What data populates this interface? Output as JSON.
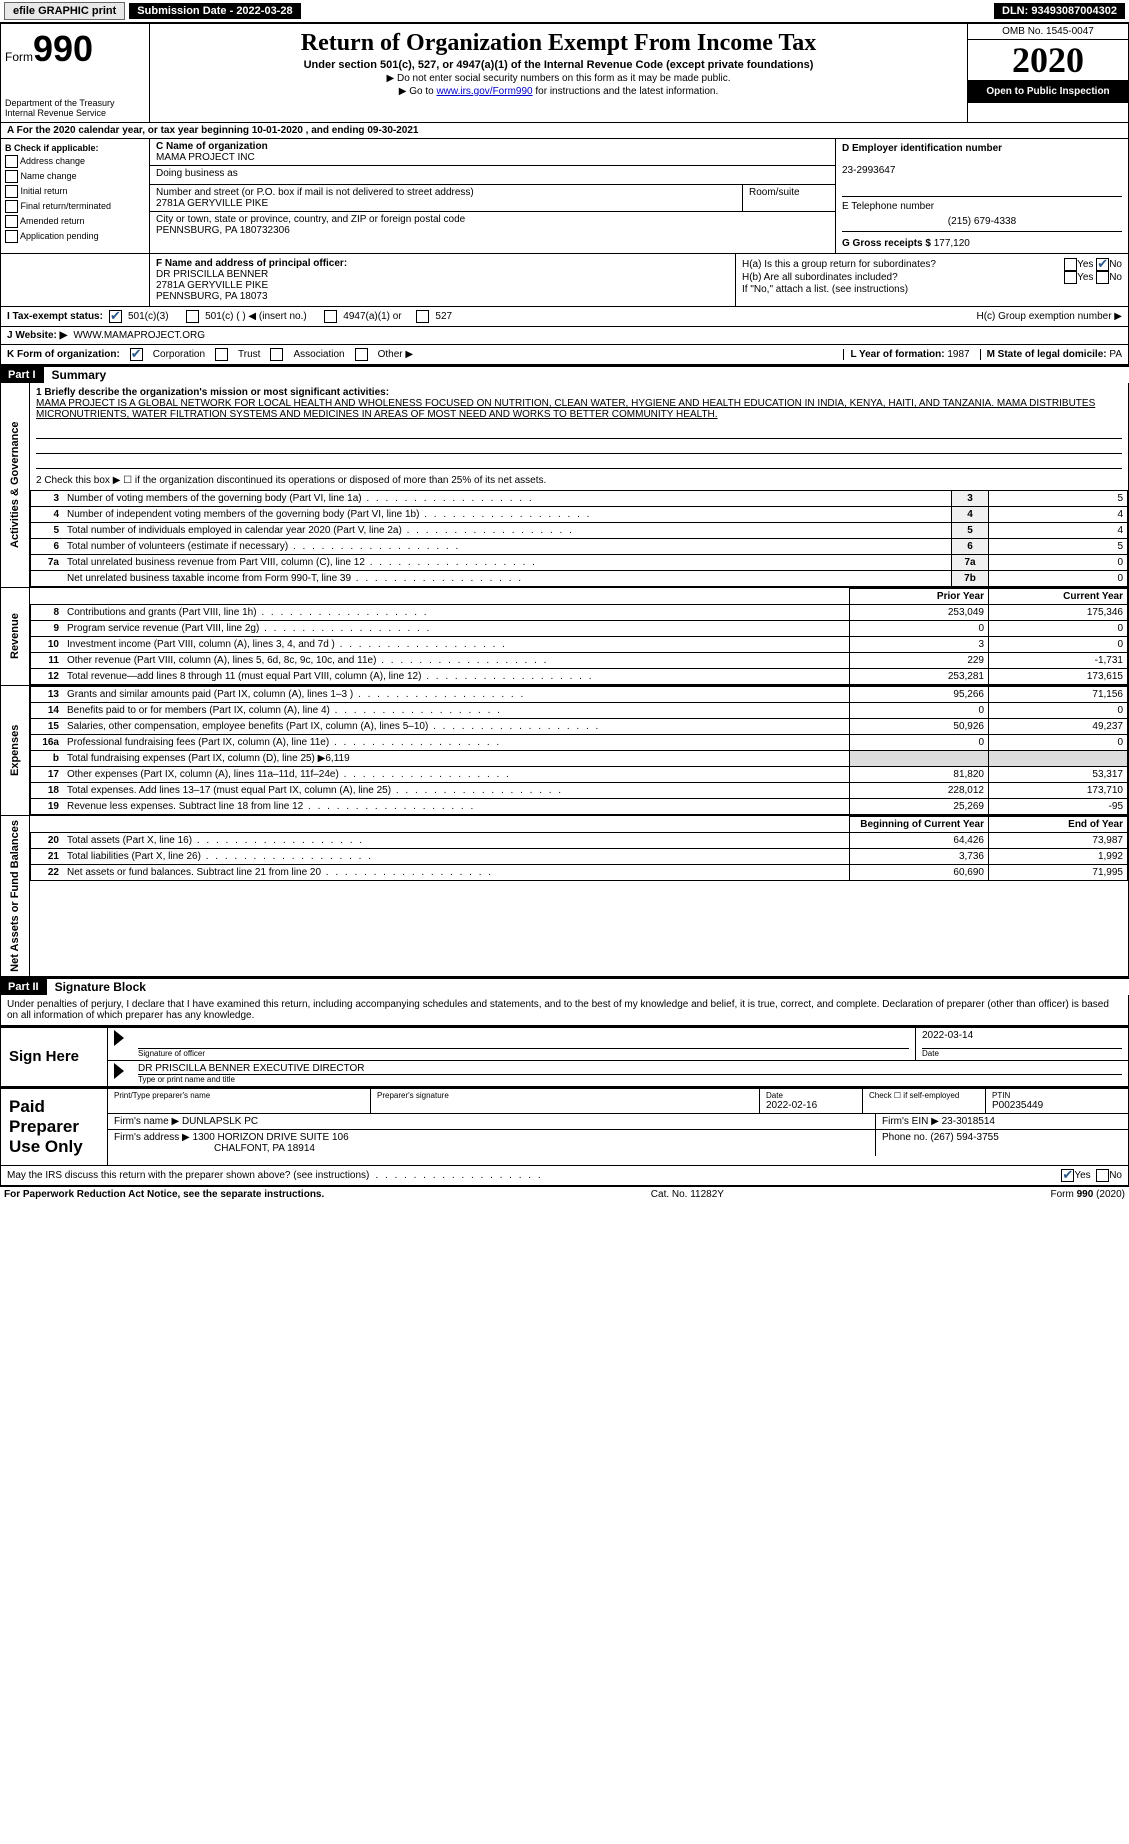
{
  "topbar": {
    "efile": "efile GRAPHIC print",
    "submission": "Submission Date - 2022-03-28",
    "dln": "DLN: 93493087004302"
  },
  "header": {
    "form_prefix": "Form",
    "form_number": "990",
    "title": "Return of Organization Exempt From Income Tax",
    "subtitle": "Under section 501(c), 527, or 4947(a)(1) of the Internal Revenue Code (except private foundations)",
    "note1": "▶ Do not enter social security numbers on this form as it may be made public.",
    "note2_pre": "▶ Go to ",
    "note2_link": "www.irs.gov/Form990",
    "note2_post": " for instructions and the latest information.",
    "dept": "Department of the Treasury",
    "irs": "Internal Revenue Service",
    "omb": "OMB No. 1545-0047",
    "year": "2020",
    "open": "Open to Public Inspection"
  },
  "line_a": "A For the 2020 calendar year, or tax year beginning 10-01-2020    , and ending 09-30-2021",
  "section_b": {
    "header": "B Check if applicable:",
    "opts": [
      "Address change",
      "Name change",
      "Initial return",
      "Final return/terminated",
      "Amended return",
      "Application pending"
    ]
  },
  "section_c": {
    "label": "C Name of organization",
    "name": "MAMA PROJECT INC",
    "dba_label": "Doing business as",
    "addr_label": "Number and street (or P.O. box if mail is not delivered to street address)",
    "room_label": "Room/suite",
    "addr": "2781A GERYVILLE PIKE",
    "city_label": "City or town, state or province, country, and ZIP or foreign postal code",
    "city": "PENNSBURG, PA  180732306"
  },
  "section_d": {
    "label": "D Employer identification number",
    "val": "23-2993647"
  },
  "section_e": {
    "label": "E Telephone number",
    "val": "(215) 679-4338"
  },
  "section_g": {
    "label": "G Gross receipts $",
    "val": "177,120"
  },
  "section_f": {
    "label": "F Name and address of principal officer:",
    "name": "DR PRISCILLA BENNER",
    "addr1": "2781A GERYVILLE PIKE",
    "addr2": "PENNSBURG, PA  18073"
  },
  "section_h": {
    "ha": "H(a)  Is this a group return for subordinates?",
    "hb": "H(b)  Are all subordinates included?",
    "hb_note": "If \"No,\" attach a list. (see instructions)",
    "hc": "H(c)  Group exemption number ▶",
    "yes": "Yes",
    "no": "No"
  },
  "line_i": {
    "label": "I   Tax-exempt status:",
    "o1": "501(c)(3)",
    "o2": "501(c) (   ) ◀ (insert no.)",
    "o3": "4947(a)(1) or",
    "o4": "527"
  },
  "line_j": {
    "label": "J   Website: ▶",
    "val": "WWW.MAMAPROJECT.ORG"
  },
  "line_k": {
    "label": "K Form of organization:",
    "o1": "Corporation",
    "o2": "Trust",
    "o3": "Association",
    "o4": "Other ▶"
  },
  "line_l": {
    "label": "L Year of formation:",
    "val": "1987"
  },
  "line_m": {
    "label": "M State of legal domicile:",
    "val": "PA"
  },
  "part1": {
    "hdr": "Part I",
    "title": "Summary",
    "tab_gov": "Activities & Governance",
    "tab_rev": "Revenue",
    "tab_exp": "Expenses",
    "tab_net": "Net Assets or Fund Balances",
    "l1_label": "1   Briefly describe the organization's mission or most significant activities:",
    "l1_text": "MAMA PROJECT IS A GLOBAL NETWORK FOR LOCAL HEALTH AND WHOLENESS FOCUSED ON NUTRITION, CLEAN WATER, HYGIENE AND HEALTH EDUCATION IN INDIA, KENYA, HAITI, AND TANZANIA. MAMA DISTRIBUTES MICRONUTRIENTS, WATER FILTRATION SYSTEMS AND MEDICINES IN AREAS OF MOST NEED AND WORKS TO BETTER COMMUNITY HEALTH.",
    "l2": "2   Check this box ▶ ☐ if the organization discontinued its operations or disposed of more than 25% of its net assets.",
    "rows_gov": [
      {
        "n": "3",
        "label": "Number of voting members of the governing body (Part VI, line 1a)",
        "cell": "3",
        "val": "5"
      },
      {
        "n": "4",
        "label": "Number of independent voting members of the governing body (Part VI, line 1b)",
        "cell": "4",
        "val": "4"
      },
      {
        "n": "5",
        "label": "Total number of individuals employed in calendar year 2020 (Part V, line 2a)",
        "cell": "5",
        "val": "4"
      },
      {
        "n": "6",
        "label": "Total number of volunteers (estimate if necessary)",
        "cell": "6",
        "val": "5"
      },
      {
        "n": "7a",
        "label": "Total unrelated business revenue from Part VIII, column (C), line 12",
        "cell": "7a",
        "val": "0"
      },
      {
        "n": "",
        "label": "Net unrelated business taxable income from Form 990-T, line 39",
        "cell": "7b",
        "val": "0"
      }
    ],
    "hdr_prior": "Prior Year",
    "hdr_current": "Current Year",
    "rows_rev": [
      {
        "n": "8",
        "label": "Contributions and grants (Part VIII, line 1h)",
        "prior": "253,049",
        "cur": "175,346"
      },
      {
        "n": "9",
        "label": "Program service revenue (Part VIII, line 2g)",
        "prior": "0",
        "cur": "0"
      },
      {
        "n": "10",
        "label": "Investment income (Part VIII, column (A), lines 3, 4, and 7d )",
        "prior": "3",
        "cur": "0"
      },
      {
        "n": "11",
        "label": "Other revenue (Part VIII, column (A), lines 5, 6d, 8c, 9c, 10c, and 11e)",
        "prior": "229",
        "cur": "-1,731"
      },
      {
        "n": "12",
        "label": "Total revenue—add lines 8 through 11 (must equal Part VIII, column (A), line 12)",
        "prior": "253,281",
        "cur": "173,615"
      }
    ],
    "rows_exp": [
      {
        "n": "13",
        "label": "Grants and similar amounts paid (Part IX, column (A), lines 1–3 )",
        "prior": "95,266",
        "cur": "71,156"
      },
      {
        "n": "14",
        "label": "Benefits paid to or for members (Part IX, column (A), line 4)",
        "prior": "0",
        "cur": "0"
      },
      {
        "n": "15",
        "label": "Salaries, other compensation, employee benefits (Part IX, column (A), lines 5–10)",
        "prior": "50,926",
        "cur": "49,237"
      },
      {
        "n": "16a",
        "label": "Professional fundraising fees (Part IX, column (A), line 11e)",
        "prior": "0",
        "cur": "0"
      },
      {
        "n": "b",
        "label": "Total fundraising expenses (Part IX, column (D), line 25) ▶6,119",
        "prior": "",
        "cur": "",
        "shade": true
      },
      {
        "n": "17",
        "label": "Other expenses (Part IX, column (A), lines 11a–11d, 11f–24e)",
        "prior": "81,820",
        "cur": "53,317"
      },
      {
        "n": "18",
        "label": "Total expenses. Add lines 13–17 (must equal Part IX, column (A), line 25)",
        "prior": "228,012",
        "cur": "173,710"
      },
      {
        "n": "19",
        "label": "Revenue less expenses. Subtract line 18 from line 12",
        "prior": "25,269",
        "cur": "-95"
      }
    ],
    "hdr_begin": "Beginning of Current Year",
    "hdr_end": "End of Year",
    "rows_net": [
      {
        "n": "20",
        "label": "Total assets (Part X, line 16)",
        "prior": "64,426",
        "cur": "73,987"
      },
      {
        "n": "21",
        "label": "Total liabilities (Part X, line 26)",
        "prior": "3,736",
        "cur": "1,992"
      },
      {
        "n": "22",
        "label": "Net assets or fund balances. Subtract line 21 from line 20",
        "prior": "60,690",
        "cur": "71,995"
      }
    ]
  },
  "part2": {
    "hdr": "Part II",
    "title": "Signature Block",
    "decl": "Under penalties of perjury, I declare that I have examined this return, including accompanying schedules and statements, and to the best of my knowledge and belief, it is true, correct, and complete. Declaration of preparer (other than officer) is based on all information of which preparer has any knowledge.",
    "sign_here": "Sign Here",
    "sig_officer": "Signature of officer",
    "sig_date": "Date",
    "sig_date_val": "2022-03-14",
    "officer_name": "DR PRISCILLA BENNER  EXECUTIVE DIRECTOR",
    "type_name": "Type or print name and title",
    "paid": "Paid Preparer Use Only",
    "prep_name_label": "Print/Type preparer's name",
    "prep_sig_label": "Preparer's signature",
    "prep_date_label": "Date",
    "prep_date_val": "2022-02-16",
    "check_se": "Check ☐ if self-employed",
    "ptin_label": "PTIN",
    "ptin": "P00235449",
    "firm_name_label": "Firm's name    ▶",
    "firm_name": "DUNLAPSLK PC",
    "firm_ein_label": "Firm's EIN ▶",
    "firm_ein": "23-3018514",
    "firm_addr_label": "Firm's address ▶",
    "firm_addr1": "1300 HORIZON DRIVE SUITE 106",
    "firm_addr2": "CHALFONT, PA  18914",
    "phone_label": "Phone no.",
    "phone": "(267) 594-3755",
    "discuss": "May the IRS discuss this return with the preparer shown above? (see instructions)",
    "yes": "Yes",
    "no": "No"
  },
  "footer": {
    "left": "For Paperwork Reduction Act Notice, see the separate instructions.",
    "mid": "Cat. No. 11282Y",
    "right_pre": "Form ",
    "right_form": "990",
    "right_post": " (2020)"
  },
  "colors": {
    "link": "#0000cc",
    "check": "#2a5a8a"
  }
}
